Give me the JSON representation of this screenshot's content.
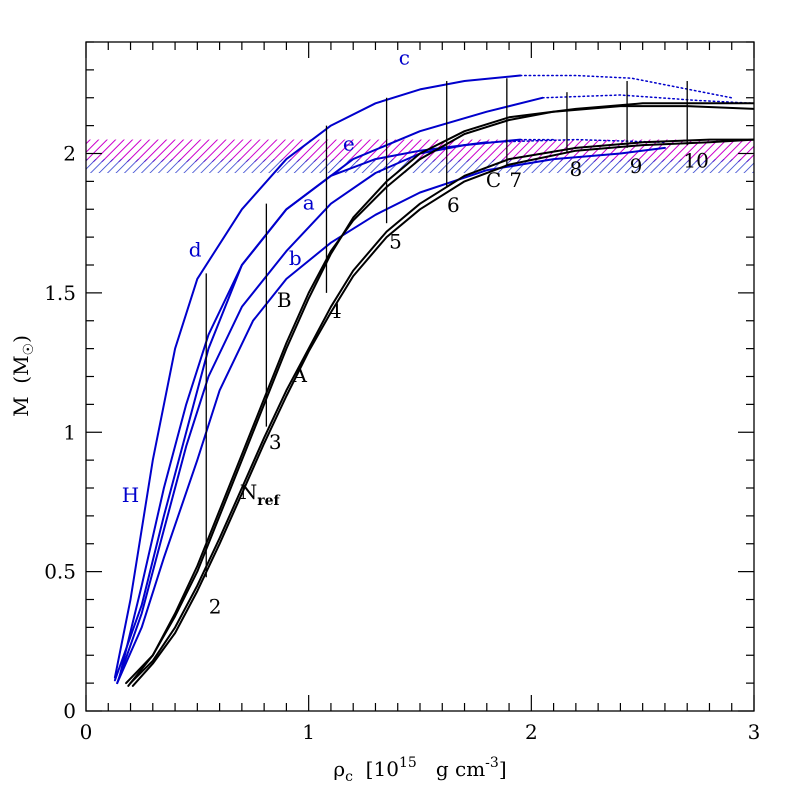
{
  "chart_data": {
    "type": "line",
    "xlabel": "ρ_c [10^15 g cm^-3]",
    "ylabel": "M (M_⊙)",
    "xlim": [
      0,
      3
    ],
    "ylim": [
      0,
      2.4
    ],
    "x_ticks": [
      "0",
      "1",
      "2",
      "3"
    ],
    "y_ticks": [
      "0",
      "0.5",
      "1",
      "1.5",
      "2"
    ],
    "x_tick_values": [
      0,
      1,
      2,
      3
    ],
    "y_tick_values": [
      0,
      0.5,
      1,
      1.5,
      2
    ],
    "bands": [
      {
        "color": "#cc00cc",
        "range": [
          1.97,
          2.05
        ]
      },
      {
        "color": "#2233cc",
        "range": [
          1.93,
          1.98
        ]
      }
    ],
    "series": [
      {
        "color": "#0000cc",
        "style": "solid",
        "points": [
          [
            0.13,
            0.12
          ],
          [
            0.2,
            0.4
          ],
          [
            0.3,
            0.9
          ],
          [
            0.4,
            1.3
          ],
          [
            0.5,
            1.55
          ],
          [
            0.7,
            1.8
          ],
          [
            0.9,
            1.98
          ],
          [
            1.1,
            2.1
          ],
          [
            1.3,
            2.18
          ],
          [
            1.5,
            2.23
          ],
          [
            1.7,
            2.26
          ],
          [
            1.95,
            2.28
          ]
        ]
      },
      {
        "color": "#0000cc",
        "style": "dotted",
        "points": [
          [
            1.95,
            2.28
          ],
          [
            2.2,
            2.28
          ],
          [
            2.45,
            2.27
          ],
          [
            2.9,
            2.2
          ]
        ]
      },
      {
        "color": "#0000cc",
        "style": "solid",
        "points": [
          [
            0.15,
            0.12
          ],
          [
            0.25,
            0.45
          ],
          [
            0.35,
            0.8
          ],
          [
            0.45,
            1.1
          ],
          [
            0.55,
            1.35
          ],
          [
            0.7,
            1.6
          ],
          [
            0.9,
            1.8
          ],
          [
            1.2,
            1.98
          ],
          [
            1.5,
            2.08
          ],
          [
            1.8,
            2.15
          ],
          [
            2.05,
            2.2
          ]
        ]
      },
      {
        "color": "#0000cc",
        "style": "dotted",
        "points": [
          [
            2.05,
            2.2
          ],
          [
            2.4,
            2.21
          ],
          [
            2.75,
            2.19
          ],
          [
            3.0,
            2.18
          ]
        ]
      },
      {
        "color": "#0000cc",
        "style": "solid",
        "points": [
          [
            0.14,
            0.1
          ],
          [
            0.25,
            0.35
          ],
          [
            0.35,
            0.65
          ],
          [
            0.45,
            0.95
          ],
          [
            0.55,
            1.2
          ],
          [
            0.7,
            1.45
          ],
          [
            0.9,
            1.65
          ],
          [
            1.1,
            1.82
          ],
          [
            1.3,
            1.93
          ],
          [
            1.5,
            2.0
          ],
          [
            1.7,
            2.03
          ],
          [
            1.95,
            2.05
          ]
        ]
      },
      {
        "color": "#0000cc",
        "style": "dotted",
        "points": [
          [
            1.95,
            2.05
          ],
          [
            2.1,
            2.05
          ]
        ]
      },
      {
        "color": "#0000cc",
        "style": "solid",
        "points": [
          [
            0.14,
            0.1
          ],
          [
            0.25,
            0.3
          ],
          [
            0.35,
            0.55
          ],
          [
            0.5,
            0.9
          ],
          [
            0.6,
            1.15
          ],
          [
            0.75,
            1.4
          ],
          [
            0.9,
            1.55
          ],
          [
            1.1,
            1.68
          ],
          [
            1.3,
            1.78
          ],
          [
            1.5,
            1.86
          ],
          [
            1.8,
            1.94
          ],
          [
            2.1,
            1.98
          ],
          [
            2.4,
            2.0
          ],
          [
            2.6,
            2.02
          ]
        ]
      },
      {
        "color": "#0000cc",
        "style": "solid",
        "points": [
          [
            0.13,
            0.11
          ],
          [
            0.25,
            0.38
          ],
          [
            0.35,
            0.7
          ],
          [
            0.45,
            1.0
          ],
          [
            0.55,
            1.3
          ],
          [
            0.7,
            1.6
          ],
          [
            0.9,
            1.8
          ],
          [
            1.1,
            1.92
          ],
          [
            1.3,
            1.98
          ],
          [
            1.5,
            2.01
          ],
          [
            1.8,
            2.04
          ]
        ]
      },
      {
        "color": "#0000cc",
        "style": "dotted",
        "points": [
          [
            1.8,
            2.04
          ],
          [
            2.2,
            2.05
          ],
          [
            2.6,
            2.04
          ]
        ]
      },
      {
        "color": "#000000",
        "style": "solid",
        "points": [
          [
            0.18,
            0.1
          ],
          [
            0.3,
            0.2
          ],
          [
            0.4,
            0.35
          ],
          [
            0.5,
            0.52
          ],
          [
            0.6,
            0.72
          ],
          [
            0.7,
            0.92
          ],
          [
            0.8,
            1.12
          ],
          [
            0.9,
            1.32
          ],
          [
            1.0,
            1.5
          ],
          [
            1.1,
            1.65
          ],
          [
            1.2,
            1.76
          ],
          [
            1.35,
            1.88
          ],
          [
            1.5,
            1.98
          ],
          [
            1.7,
            2.07
          ],
          [
            1.9,
            2.12
          ],
          [
            2.1,
            2.15
          ],
          [
            2.4,
            2.17
          ],
          [
            2.7,
            2.17
          ],
          [
            3.0,
            2.16
          ]
        ]
      },
      {
        "color": "#000000",
        "style": "solid",
        "points": [
          [
            0.2,
            0.1
          ],
          [
            0.3,
            0.18
          ],
          [
            0.4,
            0.3
          ],
          [
            0.5,
            0.45
          ],
          [
            0.6,
            0.62
          ],
          [
            0.7,
            0.8
          ],
          [
            0.8,
            0.98
          ],
          [
            0.9,
            1.15
          ],
          [
            1.0,
            1.3
          ],
          [
            1.1,
            1.45
          ],
          [
            1.2,
            1.58
          ],
          [
            1.35,
            1.72
          ],
          [
            1.5,
            1.82
          ],
          [
            1.7,
            1.92
          ],
          [
            1.9,
            1.98
          ],
          [
            2.2,
            2.02
          ],
          [
            2.5,
            2.04
          ],
          [
            2.8,
            2.05
          ],
          [
            3.0,
            2.05
          ]
        ]
      },
      {
        "color": "#000000",
        "style": "solid",
        "points": [
          [
            0.19,
            0.09
          ],
          [
            0.3,
            0.2
          ],
          [
            0.4,
            0.34
          ],
          [
            0.5,
            0.5
          ],
          [
            0.6,
            0.7
          ],
          [
            0.7,
            0.9
          ],
          [
            0.8,
            1.1
          ],
          [
            0.9,
            1.3
          ],
          [
            1.0,
            1.48
          ],
          [
            1.1,
            1.64
          ],
          [
            1.2,
            1.77
          ],
          [
            1.35,
            1.9
          ],
          [
            1.5,
            2.0
          ],
          [
            1.7,
            2.08
          ],
          [
            1.9,
            2.13
          ],
          [
            2.2,
            2.16
          ],
          [
            2.5,
            2.18
          ],
          [
            2.8,
            2.18
          ],
          [
            3.0,
            2.18
          ]
        ]
      },
      {
        "color": "#000000",
        "style": "solid",
        "points": [
          [
            0.21,
            0.09
          ],
          [
            0.3,
            0.17
          ],
          [
            0.4,
            0.28
          ],
          [
            0.5,
            0.43
          ],
          [
            0.6,
            0.6
          ],
          [
            0.7,
            0.78
          ],
          [
            0.8,
            0.96
          ],
          [
            0.9,
            1.13
          ],
          [
            1.0,
            1.29
          ],
          [
            1.1,
            1.43
          ],
          [
            1.2,
            1.56
          ],
          [
            1.35,
            1.7
          ],
          [
            1.5,
            1.8
          ],
          [
            1.7,
            1.9
          ],
          [
            1.9,
            1.96
          ],
          [
            2.2,
            2.01
          ],
          [
            2.5,
            2.03
          ],
          [
            2.8,
            2.04
          ],
          [
            3.0,
            2.05
          ]
        ]
      }
    ],
    "vlines": [
      {
        "x": 0.54,
        "y0": 0.48,
        "y1": 1.57
      },
      {
        "x": 0.81,
        "y0": 1.02,
        "y1": 1.82
      },
      {
        "x": 1.08,
        "y0": 1.5,
        "y1": 2.1
      },
      {
        "x": 1.35,
        "y0": 1.75,
        "y1": 2.2
      },
      {
        "x": 1.62,
        "y0": 1.88,
        "y1": 2.26
      },
      {
        "x": 1.89,
        "y0": 1.96,
        "y1": 2.27
      },
      {
        "x": 2.16,
        "y0": 2.0,
        "y1": 2.22
      },
      {
        "x": 2.43,
        "y0": 2.02,
        "y1": 2.26
      },
      {
        "x": 2.7,
        "y0": 2.03,
        "y1": 2.26
      }
    ],
    "annotations": [
      {
        "text": "c",
        "x": 1.43,
        "y": 2.32,
        "color": "#0000cc"
      },
      {
        "text": "e",
        "x": 1.18,
        "y": 2.01,
        "color": "#0000cc"
      },
      {
        "text": "a",
        "x": 1.0,
        "y": 1.8,
        "color": "#0000cc"
      },
      {
        "text": "d",
        "x": 0.49,
        "y": 1.63,
        "color": "#0000cc"
      },
      {
        "text": "b",
        "x": 0.94,
        "y": 1.6,
        "color": "#0000cc"
      },
      {
        "text": "H",
        "x": 0.2,
        "y": 0.75,
        "color": "#0000cc"
      },
      {
        "text": "B",
        "x": 0.89,
        "y": 1.45,
        "color": "#000000"
      },
      {
        "text": "4",
        "x": 1.12,
        "y": 1.41,
        "color": "#000000"
      },
      {
        "text": "A",
        "x": 0.96,
        "y": 1.18,
        "color": "#000000"
      },
      {
        "text": "3",
        "x": 0.85,
        "y": 0.94,
        "color": "#000000"
      },
      {
        "text": "N",
        "sub": "ref",
        "x": 0.78,
        "y": 0.76,
        "color": "#000000"
      },
      {
        "text": "2",
        "x": 0.58,
        "y": 0.35,
        "color": "#000000"
      },
      {
        "text": "5",
        "x": 1.39,
        "y": 1.66,
        "color": "#000000"
      },
      {
        "text": "6",
        "x": 1.65,
        "y": 1.79,
        "color": "#000000"
      },
      {
        "text": "C",
        "x": 1.83,
        "y": 1.88,
        "color": "#000000"
      },
      {
        "text": "7",
        "x": 1.93,
        "y": 1.88,
        "color": "#000000"
      },
      {
        "text": "8",
        "x": 2.2,
        "y": 1.92,
        "color": "#000000"
      },
      {
        "text": "9",
        "x": 2.47,
        "y": 1.93,
        "color": "#000000"
      },
      {
        "text": "10",
        "x": 2.74,
        "y": 1.95,
        "color": "#000000"
      }
    ]
  }
}
